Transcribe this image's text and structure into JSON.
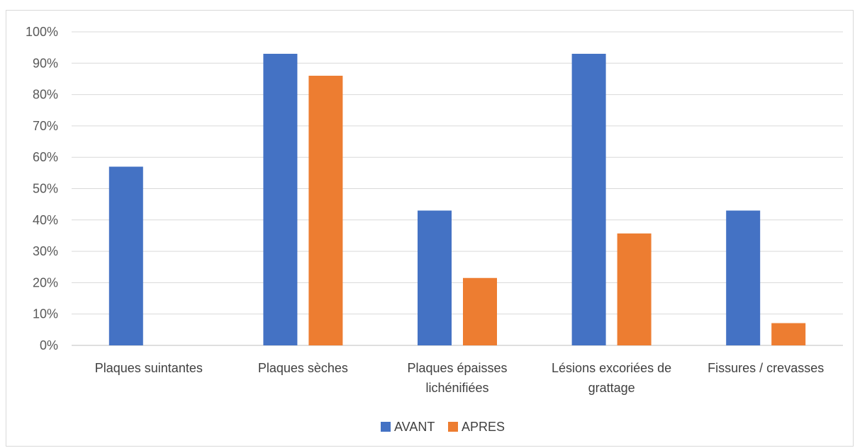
{
  "chart_data": {
    "type": "bar",
    "title": "",
    "xlabel": "",
    "ylabel": "",
    "categories": [
      [
        "Plaques suintantes"
      ],
      [
        "Plaques sèches"
      ],
      [
        "Plaques épaisses",
        "lichénifiées"
      ],
      [
        "Lésions excoriées de",
        "grattage"
      ],
      [
        "Fissures / crevasses"
      ]
    ],
    "series": [
      {
        "name": "AVANT",
        "color": "#4472C4",
        "values": [
          57,
          93,
          43,
          93,
          43
        ]
      },
      {
        "name": "APRES",
        "color": "#ED7D31",
        "values": [
          0,
          86,
          21.5,
          35.7,
          7.1
        ]
      }
    ],
    "ylim": [
      0,
      100
    ],
    "yticks": [
      "0%",
      "10%",
      "20%",
      "30%",
      "40%",
      "50%",
      "60%",
      "70%",
      "80%",
      "90%",
      "100%"
    ],
    "grid": true,
    "legend_position": "bottom"
  }
}
